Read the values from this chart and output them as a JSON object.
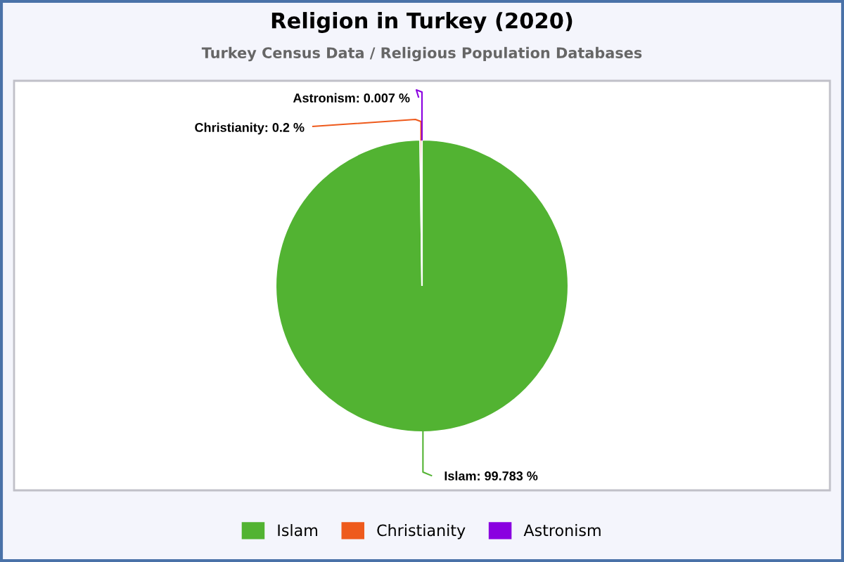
{
  "chart_data": {
    "type": "pie",
    "title": "Religion in Turkey (2020)",
    "subtitle": "Turkey Census Data / Religious Population Databases",
    "categories": [
      "Islam",
      "Christianity",
      "Astronism"
    ],
    "values": [
      99.783,
      0.2,
      0.007
    ],
    "value_labels": [
      "Islam: 99.783 %",
      "Christianity: 0.2 %",
      "Astronism: 0.007 %"
    ],
    "colors": [
      "#52b332",
      "#ee5a1c",
      "#8a00e0"
    ],
    "legend": "bottom"
  }
}
